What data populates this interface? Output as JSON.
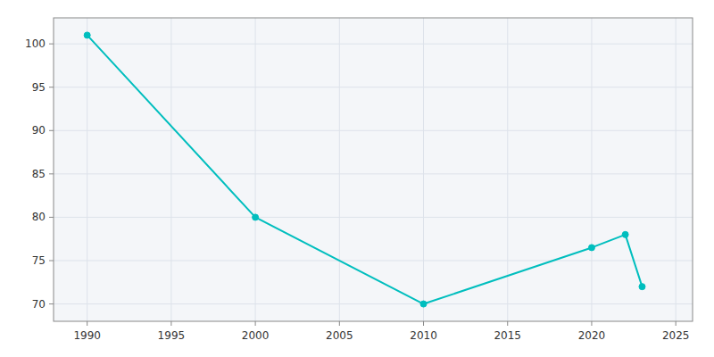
{
  "chart_data": {
    "type": "line",
    "x": [
      1990,
      2000,
      2010,
      2020,
      2022,
      2023
    ],
    "values": [
      101,
      80,
      70,
      76.5,
      78,
      72
    ],
    "color": "#00BEBE",
    "marker": "circle",
    "xlim": [
      1988,
      2026
    ],
    "ylim": [
      68,
      103
    ],
    "xticks": [
      1990,
      1995,
      2000,
      2005,
      2010,
      2015,
      2020,
      2025
    ],
    "yticks": [
      70,
      75,
      80,
      85,
      90,
      95,
      100
    ],
    "grid": true
  }
}
